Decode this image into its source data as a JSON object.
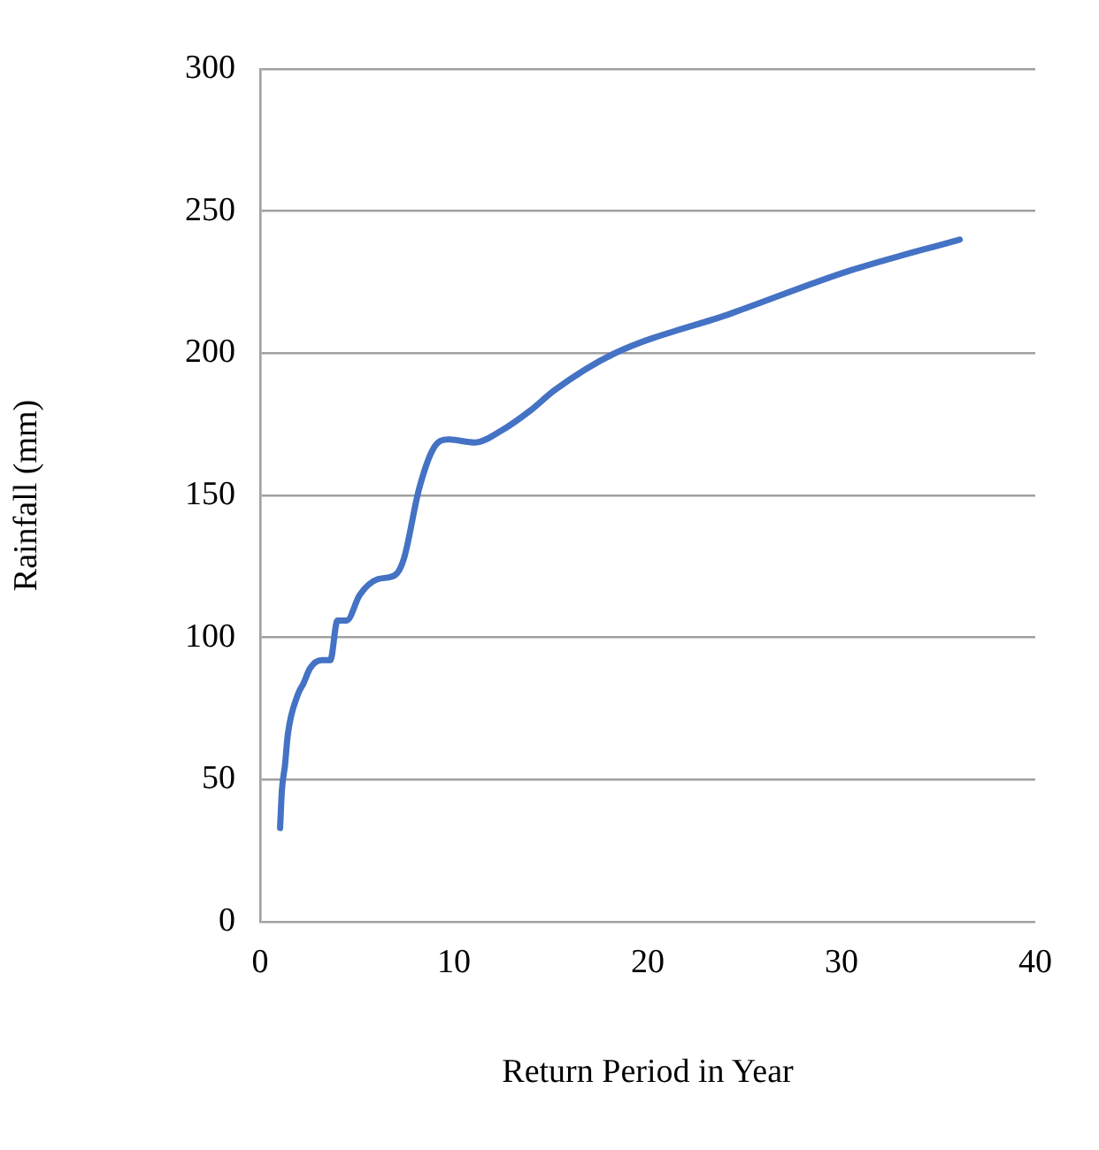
{
  "chart_data": {
    "type": "line",
    "xlabel": "Return Period in Year",
    "ylabel": "Rainfall (mm)",
    "series": [
      {
        "color": "#4472c4",
        "x": [
          1.03,
          1.12,
          1.28,
          1.43,
          1.95,
          2.25,
          2.56,
          3.17,
          3.62,
          3.99,
          4.47,
          5.14,
          6.06,
          6.97,
          7.43,
          8.19,
          8.95,
          9.71,
          11.08,
          12.45,
          13.97,
          15.19,
          18.24,
          24.3,
          30.4,
          36.1
        ],
        "values": [
          33,
          46,
          55,
          66,
          80,
          84,
          89,
          92,
          92,
          106,
          106,
          115,
          120.5,
          122,
          128,
          152,
          166.6,
          169.7,
          168.6,
          172.8,
          180,
          187,
          199.8,
          214,
          229,
          240
        ]
      }
    ],
    "xlim": [
      0,
      40
    ],
    "xticks": [
      0,
      10,
      20,
      30,
      40
    ],
    "ylim": [
      0,
      300
    ],
    "yticks": [
      0,
      50,
      100,
      150,
      200,
      250,
      300
    ],
    "grid": "y",
    "legend": false,
    "marker": "none",
    "line_style": "solid"
  }
}
